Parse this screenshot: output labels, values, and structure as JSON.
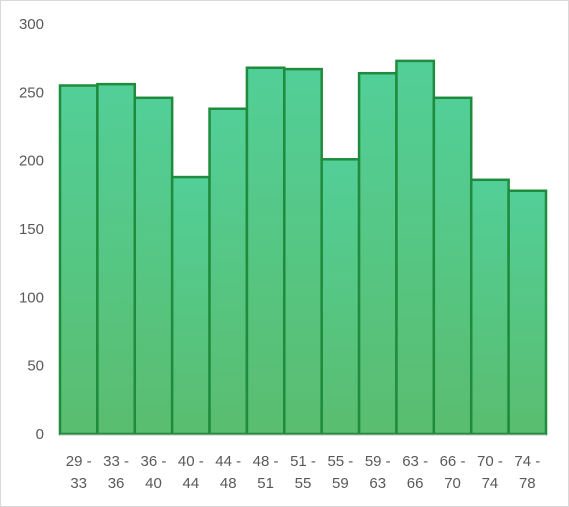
{
  "chart_data": {
    "type": "bar",
    "title": "",
    "xlabel": "",
    "ylabel": "",
    "categories": [
      [
        "29 -",
        "33"
      ],
      [
        "33 -",
        "36"
      ],
      [
        "36 -",
        "40"
      ],
      [
        "40 -",
        "44"
      ],
      [
        "44 -",
        "48"
      ],
      [
        "48 -",
        "51"
      ],
      [
        "51 -",
        "55"
      ],
      [
        "55 -",
        "59"
      ],
      [
        "59 -",
        "63"
      ],
      [
        "63 -",
        "66"
      ],
      [
        "66 -",
        "70"
      ],
      [
        "70 -",
        "74"
      ],
      [
        "74 -",
        "78"
      ]
    ],
    "values": [
      255,
      256,
      246,
      188,
      238,
      268,
      267,
      201,
      264,
      273,
      246,
      186,
      178
    ],
    "ylim": [
      0,
      300
    ],
    "yticks": [
      "0",
      "50",
      "100",
      "150",
      "200",
      "250",
      "300"
    ],
    "grid": false,
    "legend": "none",
    "colors": {
      "bar_top": "#52cf98",
      "bar_bottom": "#5abd6f",
      "bar_edge": "#1f8b3d",
      "axis": "#bfbfbf",
      "text": "#595959"
    }
  }
}
